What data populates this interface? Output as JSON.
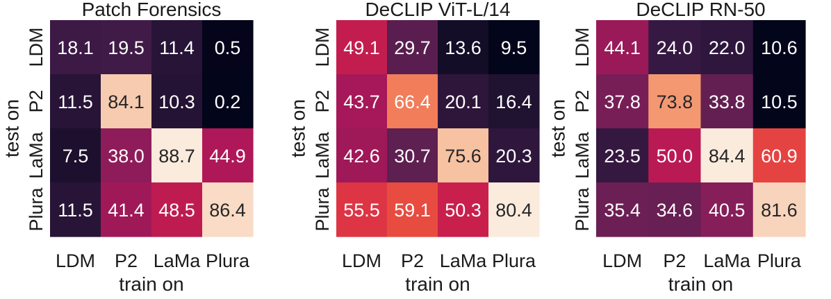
{
  "chart_data": [
    {
      "type": "heatmap",
      "title": "Patch Forensics",
      "xlabel": "train on",
      "ylabel": "test on",
      "x_categories": [
        "LDM",
        "P2",
        "LaMa",
        "Plura"
      ],
      "y_categories": [
        "LDM",
        "P2",
        "LaMa",
        "Plura"
      ],
      "values": [
        [
          18.1,
          19.5,
          11.4,
          0.5
        ],
        [
          11.5,
          84.1,
          10.3,
          0.2
        ],
        [
          7.5,
          38.0,
          88.7,
          44.9
        ],
        [
          11.5,
          41.4,
          48.5,
          86.4
        ]
      ],
      "value_labels": [
        [
          "18.1",
          "19.5",
          "11.4",
          "0.5"
        ],
        [
          "11.5",
          "84.1",
          "10.3",
          "0.2"
        ],
        [
          "7.5",
          "38.0",
          "88.7",
          "44.9"
        ],
        [
          "11.5",
          "41.4",
          "48.5",
          "86.4"
        ]
      ],
      "colormap": "rocket",
      "grid": false
    },
    {
      "type": "heatmap",
      "title": "DeCLIP ViT-L/14",
      "xlabel": "train on",
      "ylabel": "test on",
      "x_categories": [
        "LDM",
        "P2",
        "LaMa",
        "Plura"
      ],
      "y_categories": [
        "LDM",
        "P2",
        "LaMa",
        "Plura"
      ],
      "values": [
        [
          49.1,
          29.7,
          13.6,
          9.5
        ],
        [
          43.7,
          66.4,
          20.1,
          16.4
        ],
        [
          42.6,
          30.7,
          75.6,
          20.3
        ],
        [
          55.5,
          59.1,
          50.3,
          80.4
        ]
      ],
      "value_labels": [
        [
          "49.1",
          "29.7",
          "13.6",
          "9.5"
        ],
        [
          "43.7",
          "66.4",
          "20.1",
          "16.4"
        ],
        [
          "42.6",
          "30.7",
          "75.6",
          "20.3"
        ],
        [
          "55.5",
          "59.1",
          "50.3",
          "80.4"
        ]
      ],
      "colormap": "rocket",
      "grid": false
    },
    {
      "type": "heatmap",
      "title": "DeCLIP RN-50",
      "xlabel": "train on",
      "ylabel": "test on",
      "x_categories": [
        "LDM",
        "P2",
        "LaMa",
        "Plura"
      ],
      "y_categories": [
        "LDM",
        "P2",
        "LaMa",
        "Plura"
      ],
      "values": [
        [
          44.1,
          24.0,
          22.0,
          10.6
        ],
        [
          37.8,
          73.8,
          33.8,
          10.5
        ],
        [
          23.5,
          50.0,
          84.4,
          60.9
        ],
        [
          35.4,
          34.6,
          40.5,
          81.6
        ]
      ],
      "value_labels": [
        [
          "44.1",
          "24.0",
          "22.0",
          "10.6"
        ],
        [
          "37.8",
          "73.8",
          "33.8",
          "10.5"
        ],
        [
          "23.5",
          "50.0",
          "84.4",
          "60.9"
        ],
        [
          "35.4",
          "34.6",
          "40.5",
          "81.6"
        ]
      ],
      "colormap": "rocket",
      "grid": false
    }
  ]
}
